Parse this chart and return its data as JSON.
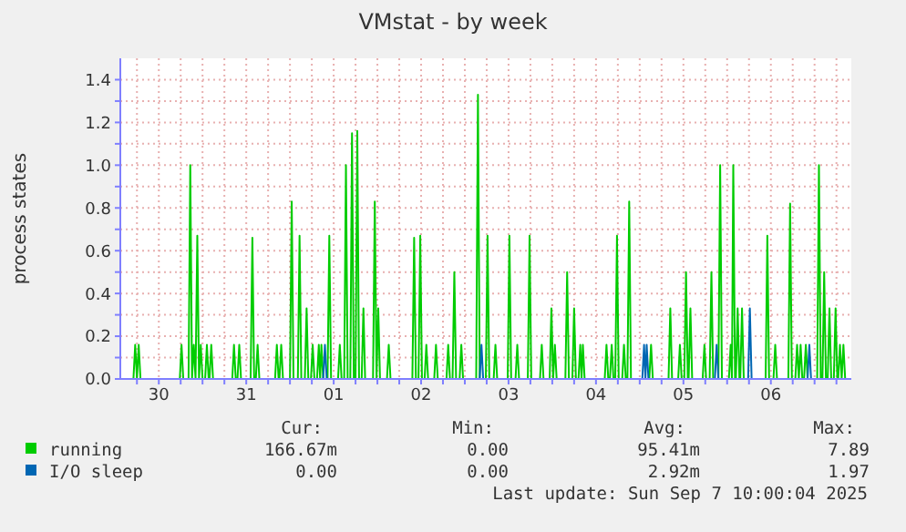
{
  "chart_data": {
    "type": "line",
    "title": "VMstat - by week",
    "ylabel": "process states",
    "xlim": [
      "2025-08-30T01:26",
      "2025-09-07T10:05"
    ],
    "xticks": [
      {
        "value": "2025-08-30T06:00",
        "label": null
      },
      {
        "value": "2025-08-30T12:00",
        "label": "30"
      },
      {
        "value": "2025-08-30T18:00",
        "label": null
      },
      {
        "value": "2025-08-31T00:00",
        "label": null
      },
      {
        "value": "2025-08-31T06:00",
        "label": null
      },
      {
        "value": "2025-08-31T12:00",
        "label": "31"
      },
      {
        "value": "2025-08-31T18:00",
        "label": null
      },
      {
        "value": "2025-09-01T00:00",
        "label": null
      },
      {
        "value": "2025-09-01T06:00",
        "label": null
      },
      {
        "value": "2025-09-01T12:00",
        "label": "01"
      },
      {
        "value": "2025-09-01T18:00",
        "label": null
      },
      {
        "value": "2025-09-02T00:00",
        "label": null
      },
      {
        "value": "2025-09-02T06:00",
        "label": null
      },
      {
        "value": "2025-09-02T12:00",
        "label": "02"
      },
      {
        "value": "2025-09-02T18:00",
        "label": null
      },
      {
        "value": "2025-09-03T00:00",
        "label": null
      },
      {
        "value": "2025-09-03T06:00",
        "label": null
      },
      {
        "value": "2025-09-03T12:00",
        "label": "03"
      },
      {
        "value": "2025-09-03T18:00",
        "label": null
      },
      {
        "value": "2025-09-04T00:00",
        "label": null
      },
      {
        "value": "2025-09-04T06:00",
        "label": null
      },
      {
        "value": "2025-09-04T12:00",
        "label": "04"
      },
      {
        "value": "2025-09-04T18:00",
        "label": null
      },
      {
        "value": "2025-09-05T00:00",
        "label": null
      },
      {
        "value": "2025-09-05T06:00",
        "label": null
      },
      {
        "value": "2025-09-05T12:00",
        "label": "05"
      },
      {
        "value": "2025-09-05T18:00",
        "label": null
      },
      {
        "value": "2025-09-06T00:00",
        "label": null
      },
      {
        "value": "2025-09-06T06:00",
        "label": null
      },
      {
        "value": "2025-09-06T12:00",
        "label": "06"
      },
      {
        "value": "2025-09-06T18:00",
        "label": null
      },
      {
        "value": "2025-09-07T00:00",
        "label": null
      },
      {
        "value": "2025-09-07T06:00",
        "label": null
      }
    ],
    "ylim": [
      0,
      1.5
    ],
    "yticks": [
      {
        "value": 0,
        "label": "0.0"
      },
      {
        "value": 0.1,
        "label": null
      },
      {
        "value": 0.2,
        "label": "0.2"
      },
      {
        "value": 0.3,
        "label": null
      },
      {
        "value": 0.4,
        "label": "0.4"
      },
      {
        "value": 0.5,
        "label": null
      },
      {
        "value": 0.6,
        "label": "0.6"
      },
      {
        "value": 0.7,
        "label": null
      },
      {
        "value": 0.8,
        "label": "0.8"
      },
      {
        "value": 0.9,
        "label": null
      },
      {
        "value": 1,
        "label": "1.0"
      },
      {
        "value": 1.1,
        "label": null
      },
      {
        "value": 1.2,
        "label": "1.2"
      },
      {
        "value": 1.3,
        "label": null
      },
      {
        "value": 1.4,
        "label": "1.4"
      }
    ],
    "grid": true,
    "legend": "bottom",
    "marker": "none",
    "line_style": "solid",
    "series": [
      {
        "name": "running",
        "color": "#00cc00",
        "x": [
          "2025-08-30T02:24",
          "2025-08-30T05:02",
          "2025-08-30T05:31",
          "2025-08-30T06:00",
          "2025-08-30T06:29",
          "2025-08-30T06:58",
          "2025-08-30T17:46",
          "2025-08-30T18:14",
          "2025-08-30T18:43",
          "2025-08-30T20:10",
          "2025-08-30T20:38",
          "2025-08-30T21:07",
          "2025-08-30T21:36",
          "2025-08-30T22:05",
          "2025-08-30T22:34",
          "2025-08-30T23:02",
          "2025-08-30T23:31",
          "2025-08-31T00:00",
          "2025-08-31T00:43",
          "2025-08-31T01:12",
          "2025-08-31T01:41",
          "2025-08-31T01:55",
          "2025-08-31T02:24",
          "2025-08-31T02:53",
          "2025-08-31T08:10",
          "2025-08-31T08:38",
          "2025-08-31T09:07",
          "2025-08-31T09:36",
          "2025-08-31T10:05",
          "2025-08-31T10:34",
          "2025-08-31T13:12",
          "2025-08-31T13:41",
          "2025-08-31T14:10",
          "2025-08-31T14:38",
          "2025-08-31T15:07",
          "2025-08-31T15:36",
          "2025-08-31T19:55",
          "2025-08-31T20:24",
          "2025-08-31T20:53",
          "2025-08-31T21:07",
          "2025-08-31T21:36",
          "2025-08-31T22:05",
          "2025-09-01T00:00",
          "2025-09-01T00:29",
          "2025-09-01T00:58",
          "2025-09-01T02:10",
          "2025-09-01T02:38",
          "2025-09-01T03:07",
          "2025-09-01T04:05",
          "2025-09-01T04:34",
          "2025-09-01T05:02",
          "2025-09-01T05:46",
          "2025-09-01T06:14",
          "2025-09-01T06:43",
          "2025-09-01T07:26",
          "2025-09-01T07:55",
          "2025-09-01T08:17",
          "2025-09-01T08:38",
          "2025-09-01T09:07",
          "2025-09-01T10:19",
          "2025-09-01T10:48",
          "2025-09-01T11:17",
          "2025-09-01T13:12",
          "2025-09-01T13:41",
          "2025-09-01T14:10",
          "2025-09-01T14:53",
          "2025-09-01T15:22",
          "2025-09-01T15:50",
          "2025-09-01T16:34",
          "2025-09-01T17:02",
          "2025-09-01T17:31",
          "2025-09-01T18:00",
          "2025-09-01T18:29",
          "2025-09-01T18:58",
          "2025-09-01T19:41",
          "2025-09-01T20:10",
          "2025-09-01T20:38",
          "2025-09-01T22:48",
          "2025-09-01T23:17",
          "2025-09-01T23:46",
          "2025-09-02T00:14",
          "2025-09-02T00:43",
          "2025-09-02T02:38",
          "2025-09-02T03:07",
          "2025-09-02T03:36",
          "2025-09-02T09:36",
          "2025-09-02T10:05",
          "2025-09-02T10:34",
          "2025-09-02T11:17",
          "2025-09-02T11:46",
          "2025-09-02T12:14",
          "2025-09-02T12:58",
          "2025-09-02T13:26",
          "2025-09-02T13:55",
          "2025-09-02T15:36",
          "2025-09-02T16:05",
          "2025-09-02T16:34",
          "2025-09-02T18:58",
          "2025-09-02T19:26",
          "2025-09-02T19:55",
          "2025-09-02T20:38",
          "2025-09-02T21:07",
          "2025-09-02T21:36",
          "2025-09-02T22:34",
          "2025-09-02T23:02",
          "2025-09-02T23:31",
          "2025-09-03T03:07",
          "2025-09-03T03:36",
          "2025-09-03T04:05",
          "2025-09-03T05:46",
          "2025-09-03T06:14",
          "2025-09-03T06:43",
          "2025-09-03T07:55",
          "2025-09-03T08:24",
          "2025-09-03T08:53",
          "2025-09-03T11:46",
          "2025-09-03T12:14",
          "2025-09-03T12:43",
          "2025-09-03T13:55",
          "2025-09-03T14:24",
          "2025-09-03T14:53",
          "2025-09-03T17:17",
          "2025-09-03T17:46",
          "2025-09-03T18:14",
          "2025-09-03T20:38",
          "2025-09-03T21:07",
          "2025-09-03T21:36",
          "2025-09-03T23:17",
          "2025-09-03T23:46",
          "2025-09-04T00:14",
          "2025-09-04T00:43",
          "2025-09-04T01:12",
          "2025-09-04T03:36",
          "2025-09-04T04:05",
          "2025-09-04T04:34",
          "2025-09-04T05:31",
          "2025-09-04T06:00",
          "2025-09-04T06:29",
          "2025-09-04T07:12",
          "2025-09-04T07:41",
          "2025-09-04T08:02",
          "2025-09-04T08:24",
          "2025-09-04T08:53",
          "2025-09-04T14:24",
          "2025-09-04T14:53",
          "2025-09-04T15:22",
          "2025-09-04T15:50",
          "2025-09-04T16:19",
          "2025-09-04T16:48",
          "2025-09-04T17:17",
          "2025-09-04T17:46",
          "2025-09-04T18:14",
          "2025-09-04T19:12",
          "2025-09-04T19:41",
          "2025-09-04T20:10",
          "2025-09-04T20:38",
          "2025-09-04T21:07",
          "2025-09-04T21:36",
          "2025-09-05T02:38",
          "2025-09-05T03:07",
          "2025-09-05T03:36",
          "2025-09-05T07:55",
          "2025-09-05T08:24",
          "2025-09-05T08:53",
          "2025-09-05T10:34",
          "2025-09-05T11:02",
          "2025-09-05T11:31",
          "2025-09-05T12:14",
          "2025-09-05T12:43",
          "2025-09-05T13:12",
          "2025-09-05T13:26",
          "2025-09-05T13:55",
          "2025-09-05T14:24",
          "2025-09-05T17:17",
          "2025-09-05T17:46",
          "2025-09-05T18:14",
          "2025-09-05T19:12",
          "2025-09-05T19:41",
          "2025-09-05T20:10",
          "2025-09-05T21:36",
          "2025-09-05T22:05",
          "2025-09-05T22:34",
          "2025-09-06T00:29",
          "2025-09-06T00:58",
          "2025-09-06T01:19",
          "2025-09-06T01:41",
          "2025-09-06T02:10",
          "2025-09-06T02:24",
          "2025-09-06T02:53",
          "2025-09-06T03:22",
          "2025-09-06T03:36",
          "2025-09-06T04:05",
          "2025-09-06T04:34",
          "2025-09-06T10:34",
          "2025-09-06T11:02",
          "2025-09-06T11:31",
          "2025-09-06T12:43",
          "2025-09-06T13:12",
          "2025-09-06T13:41",
          "2025-09-06T16:48",
          "2025-09-06T17:17",
          "2025-09-06T17:46",
          "2025-09-06T18:43",
          "2025-09-06T19:12",
          "2025-09-06T19:41",
          "2025-09-06T20:10",
          "2025-09-06T20:38",
          "2025-09-06T21:07",
          "2025-09-06T21:36",
          "2025-09-06T22:05",
          "2025-09-07T00:43",
          "2025-09-07T01:12",
          "2025-09-07T01:41",
          "2025-09-07T02:10",
          "2025-09-07T02:38",
          "2025-09-07T03:07",
          "2025-09-07T03:36",
          "2025-09-07T04:05",
          "2025-09-07T04:34",
          "2025-09-07T05:17",
          "2025-09-07T05:46",
          "2025-09-07T06:14",
          "2025-09-07T06:29",
          "2025-09-07T06:58",
          "2025-09-07T07:26",
          "2025-09-07T07:55",
          "2025-09-07T08:24",
          "2025-09-07T09:07"
        ],
        "values": [
          0,
          0,
          0.16,
          0,
          0.16,
          0,
          0,
          0.16,
          0,
          0,
          1,
          0,
          0.16,
          0,
          0.67,
          0,
          0.16,
          0,
          0,
          0.16,
          0,
          0,
          0.16,
          0,
          0,
          0.16,
          0,
          0,
          0.16,
          0,
          0,
          0.66,
          0,
          0,
          0.16,
          0,
          0,
          0.16,
          0,
          0,
          0.16,
          0,
          0,
          0.83,
          0,
          0,
          0.67,
          0,
          0,
          0.33,
          0,
          0,
          0.16,
          0,
          0,
          0.16,
          0,
          0.16,
          0,
          0,
          0.67,
          0,
          0,
          0.16,
          0,
          0,
          1,
          0,
          0,
          1.15,
          0,
          0,
          1.16,
          0,
          0,
          0.33,
          0,
          0,
          0.83,
          0,
          0.33,
          0,
          0,
          0.16,
          0,
          0,
          0.66,
          0,
          0,
          0.67,
          0,
          0,
          0.16,
          0,
          0,
          0.16,
          0,
          0,
          0.16,
          0,
          0,
          0.5,
          0,
          0,
          0.16,
          0,
          0,
          1.33,
          0,
          0,
          0.67,
          0,
          0,
          0.16,
          0,
          0,
          0.67,
          0,
          0,
          0.16,
          0,
          0,
          0.67,
          0,
          0,
          0.16,
          0,
          0,
          0.33,
          0,
          0.16,
          0,
          0,
          0.5,
          0,
          0,
          0.33,
          0,
          0,
          0.16,
          0,
          0.16,
          0,
          0,
          0.16,
          0,
          0,
          0.16,
          0,
          0,
          0.67,
          0,
          0,
          0.16,
          0,
          0,
          0.83,
          0,
          0,
          0.16,
          0,
          0,
          0.33,
          0,
          0,
          0.16,
          0,
          0,
          0.5,
          0,
          0,
          0.33,
          0,
          0,
          0.16,
          0,
          0,
          0.5,
          0,
          0,
          1,
          0,
          0,
          0.16,
          0,
          1,
          0,
          0,
          0.33,
          0,
          0,
          0.33,
          0,
          0,
          0.67,
          0,
          0,
          0.16,
          0,
          0,
          0.82,
          0,
          0,
          0.16,
          0,
          0.16,
          0,
          0,
          0.16,
          0,
          0,
          1,
          0,
          0,
          0.5,
          0,
          0,
          0.33,
          0,
          0,
          0.33,
          0,
          0,
          0.16,
          0,
          0.16,
          0,
          0
        ]
      },
      {
        "name": "I/O sleep",
        "color": "#0066b3",
        "x": [
          "2025-09-01T09:07",
          "2025-09-01T09:36",
          "2025-09-01T10:05",
          "2025-09-03T04:05",
          "2025-09-03T04:34",
          "2025-09-03T05:02",
          "2025-09-05T00:43",
          "2025-09-05T01:12",
          "2025-09-05T01:34",
          "2025-09-05T01:55",
          "2025-09-05T02:24",
          "2025-09-05T20:38",
          "2025-09-05T21:07",
          "2025-09-05T21:36",
          "2025-09-06T05:46",
          "2025-09-06T06:14",
          "2025-09-06T06:43",
          "2025-09-06T22:05",
          "2025-09-06T22:34",
          "2025-09-06T23:02"
        ],
        "values": [
          0,
          0.16,
          0,
          0,
          0.16,
          0,
          0,
          0.16,
          0,
          0.16,
          0,
          0,
          0.16,
          0,
          0,
          0.33,
          0,
          0,
          0.16,
          0
        ]
      }
    ],
    "annotations": [
      "Cur:",
      "Min:",
      "Avg:",
      "Max:",
      "166.67m",
      "0.00",
      "95.41m",
      "7.89",
      "0.00",
      "0.00",
      "2.92m",
      "1.97",
      "Last update:  Sun Sep  7 10:00:04 2025"
    ]
  }
}
